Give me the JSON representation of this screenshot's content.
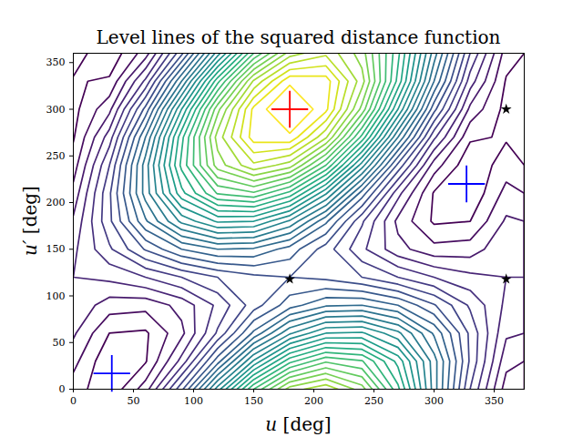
{
  "chart_data": {
    "type": "contour",
    "title": "Level lines of the squared distance function",
    "x_label": "u [deg]",
    "y_label": "u′ [deg]",
    "xlim": [
      0,
      375
    ],
    "ylim": [
      0,
      360
    ],
    "xticks": [
      0,
      50,
      100,
      150,
      200,
      250,
      300,
      350
    ],
    "yticks": [
      0,
      50,
      100,
      150,
      200,
      250,
      300,
      350
    ],
    "x": [
      0,
      30,
      60,
      90,
      120,
      150,
      180,
      210,
      240,
      270,
      300,
      330,
      360
    ],
    "y": [
      0,
      30,
      60,
      90,
      120,
      150,
      180,
      210,
      240,
      270,
      300,
      330,
      360
    ],
    "z": [
      [
        0.325,
        0.133,
        0.475,
        1.259,
        2.275,
        3.251,
        3.925,
        4.117,
        3.775,
        2.991,
        1.975,
        0.999,
        0.325
      ],
      [
        0.45,
        0.124,
        0.234,
        0.75,
        1.534,
        2.376,
        3.05,
        3.376,
        3.266,
        2.75,
        1.966,
        1.124,
        0.45
      ],
      [
        0.575,
        0.249,
        0.225,
        0.509,
        1.025,
        1.635,
        2.175,
        2.501,
        2.525,
        2.241,
        1.725,
        1.115,
        0.575
      ],
      [
        0.666,
        0.474,
        0.45,
        0.6,
        0.884,
        1.226,
        1.534,
        1.726,
        1.75,
        1.6,
        1.316,
        0.974,
        0.666
      ],
      [
        0.7,
        0.74,
        0.85,
        1.0,
        1.15,
        1.26,
        1.3,
        1.26,
        1.15,
        1.0,
        0.85,
        0.74,
        0.7
      ],
      [
        0.666,
        0.974,
        1.316,
        1.6,
        1.75,
        1.726,
        1.534,
        1.226,
        0.884,
        0.6,
        0.45,
        0.474,
        0.666
      ],
      [
        0.575,
        1.115,
        1.725,
        2.241,
        2.525,
        2.501,
        2.175,
        1.635,
        1.025,
        0.509,
        0.225,
        0.249,
        0.575
      ],
      [
        0.45,
        1.124,
        1.966,
        2.75,
        3.266,
        3.376,
        3.05,
        2.376,
        1.534,
        0.75,
        0.234,
        0.124,
        0.45
      ],
      [
        0.325,
        0.999,
        1.975,
        2.991,
        3.775,
        4.117,
        3.925,
        3.251,
        2.275,
        1.259,
        0.475,
        0.133,
        0.325
      ],
      [
        0.234,
        0.774,
        1.75,
        2.9,
        3.916,
        4.526,
        4.566,
        4.026,
        3.05,
        1.9,
        0.884,
        0.274,
        0.234
      ],
      [
        0.2,
        0.508,
        1.35,
        2.5,
        3.65,
        4.492,
        4.8,
        4.492,
        3.65,
        2.5,
        1.35,
        0.508,
        0.2
      ],
      [
        0.234,
        0.274,
        0.884,
        1.9,
        3.05,
        4.026,
        4.566,
        4.526,
        3.916,
        2.9,
        1.75,
        0.774,
        0.234
      ],
      [
        0.325,
        0.133,
        0.475,
        1.259,
        2.275,
        3.251,
        3.925,
        4.117,
        3.775,
        2.991,
        1.975,
        0.999,
        0.325
      ]
    ],
    "levels": [
      0.25,
      0.4,
      0.55,
      0.7,
      0.85,
      1.0,
      1.15,
      1.3,
      1.45,
      1.6,
      1.75,
      1.9,
      2.05,
      2.2,
      2.35,
      2.5,
      2.65,
      2.8,
      2.95,
      3.1,
      3.25,
      3.4,
      3.55,
      3.7,
      3.85,
      4.0,
      4.15,
      4.3,
      4.45,
      4.6
    ],
    "series": [
      {
        "type": "scatter",
        "marker": "plus",
        "color": "red",
        "x": [
          180
        ],
        "y": [
          300
        ]
      },
      {
        "type": "scatter",
        "marker": "plus",
        "color": "blue",
        "x": [
          32,
          327
        ],
        "y": [
          17,
          220
        ]
      },
      {
        "type": "scatter",
        "marker": "star",
        "color": "black",
        "x": [
          180,
          360,
          360
        ],
        "y": [
          118,
          118,
          300
        ]
      }
    ]
  }
}
